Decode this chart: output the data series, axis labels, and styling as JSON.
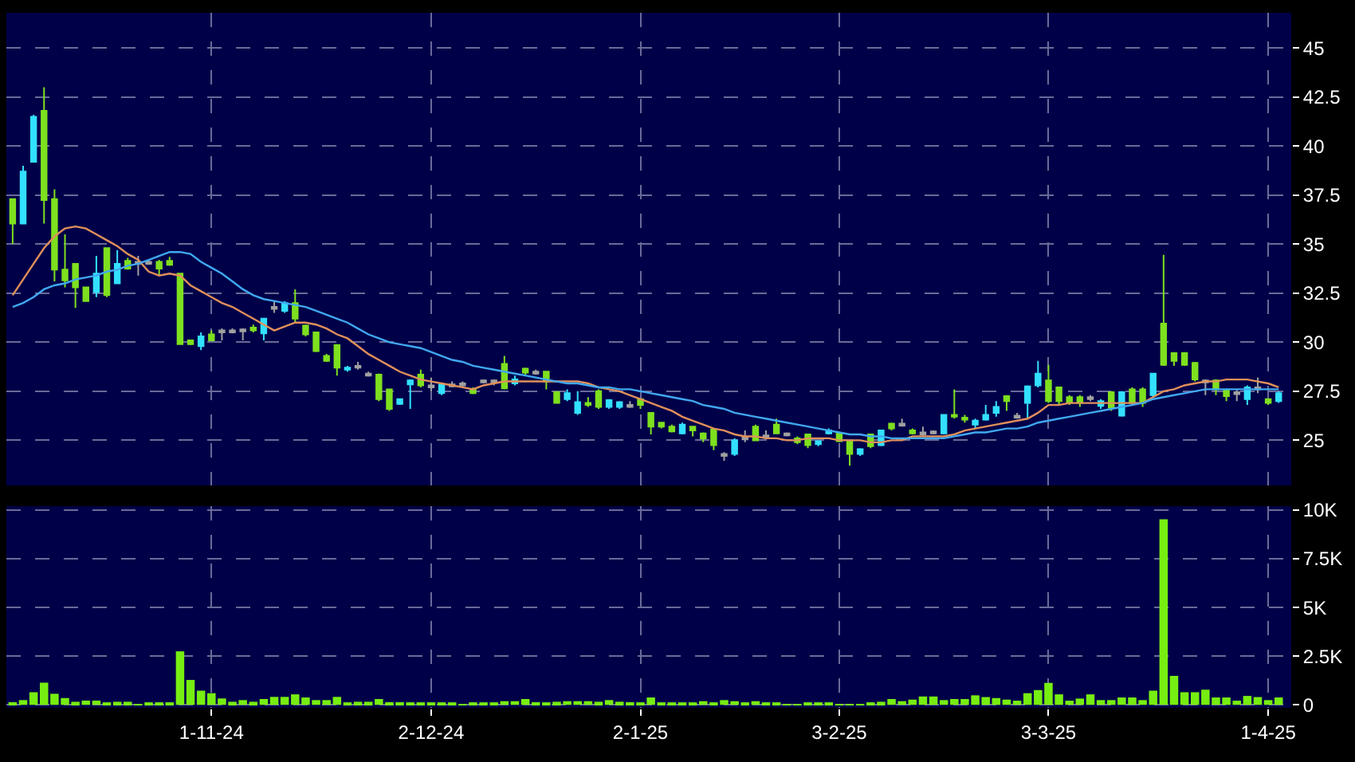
{
  "chart_data": [
    {
      "type": "candlestick",
      "tick_labels": "y",
      "categories": [
        null,
        null,
        null,
        null,
        null,
        null,
        null,
        null,
        null,
        null,
        null,
        null,
        null,
        null,
        null,
        null,
        null,
        null,
        null,
        null,
        null,
        null,
        null,
        null,
        null,
        null,
        null,
        null,
        null,
        null,
        null,
        null,
        null,
        null,
        null,
        null,
        null,
        null,
        null,
        null,
        null,
        null,
        null,
        null,
        null,
        null,
        null,
        null,
        null,
        null,
        null,
        null,
        null,
        null,
        null,
        null,
        null,
        null,
        null,
        null,
        null,
        null,
        null,
        null,
        null,
        null,
        null,
        null,
        null,
        null,
        null,
        null,
        null,
        null,
        null,
        null,
        null,
        null,
        null,
        null,
        null,
        null,
        null,
        null,
        null,
        null,
        null,
        null,
        null,
        null,
        null,
        null,
        null,
        null,
        null,
        null,
        null,
        null,
        null,
        null,
        null,
        null,
        null,
        null,
        null,
        null,
        null,
        null,
        null,
        null,
        null,
        null,
        null,
        null,
        null,
        null,
        null,
        null,
        null,
        null,
        null,
        null
      ],
      "ohlc": [
        [
          37.3,
          37.3,
          35.0,
          36.05
        ],
        [
          36.05,
          39.0,
          36.05,
          38.7
        ],
        [
          39.2,
          41.6,
          39.2,
          41.5
        ],
        [
          41.8,
          43.0,
          36.05,
          37.25
        ],
        [
          37.3,
          37.8,
          33.1,
          33.7
        ],
        [
          33.7,
          35.5,
          32.8,
          33.15
        ],
        [
          34.0,
          34.0,
          31.75,
          32.8
        ],
        [
          32.8,
          32.8,
          32.1,
          32.1
        ],
        [
          32.55,
          34.4,
          32.3,
          33.5
        ],
        [
          34.8,
          34.8,
          32.3,
          32.4
        ],
        [
          33.0,
          34.7,
          33.0,
          34.0
        ],
        [
          34.15,
          34.3,
          33.7,
          33.75
        ],
        [
          34.1,
          34.4,
          33.4,
          34.0
        ],
        [
          34.1,
          34.2,
          33.95,
          34.0
        ],
        [
          34.1,
          34.2,
          33.4,
          33.75
        ],
        [
          34.15,
          34.35,
          33.9,
          33.95
        ],
        [
          33.5,
          33.5,
          29.9,
          29.9
        ],
        [
          30.1,
          30.1,
          29.85,
          29.9
        ],
        [
          29.8,
          30.5,
          29.6,
          30.3
        ],
        [
          30.4,
          30.6,
          30.05,
          30.1
        ],
        [
          30.6,
          30.7,
          30.1,
          30.5
        ],
        [
          30.6,
          30.7,
          30.45,
          30.5
        ],
        [
          30.65,
          30.7,
          30.1,
          30.55
        ],
        [
          30.75,
          30.9,
          30.5,
          30.6
        ],
        [
          30.45,
          31.2,
          30.1,
          31.2
        ],
        [
          31.8,
          32.1,
          31.5,
          31.7
        ],
        [
          31.6,
          32.1,
          31.5,
          32.0
        ],
        [
          32.0,
          32.7,
          31.0,
          31.2
        ],
        [
          30.85,
          30.9,
          30.3,
          30.4
        ],
        [
          30.5,
          30.5,
          29.5,
          29.55
        ],
        [
          29.3,
          29.4,
          29.0,
          29.05
        ],
        [
          29.85,
          29.9,
          28.3,
          28.7
        ],
        [
          28.6,
          28.8,
          28.5,
          28.7
        ],
        [
          28.8,
          29.0,
          28.6,
          28.7
        ],
        [
          28.4,
          28.5,
          28.25,
          28.3
        ],
        [
          28.35,
          28.4,
          27.0,
          27.1
        ],
        [
          27.6,
          27.6,
          26.5,
          26.6
        ],
        [
          26.85,
          27.1,
          26.8,
          27.1
        ],
        [
          27.85,
          28.1,
          26.6,
          28.05
        ],
        [
          28.35,
          28.6,
          27.7,
          27.8
        ],
        [
          27.8,
          28.2,
          27.5,
          27.7
        ],
        [
          27.4,
          27.9,
          27.3,
          27.85
        ],
        [
          27.85,
          28.0,
          27.7,
          27.75
        ],
        [
          27.9,
          28.0,
          27.7,
          27.8
        ],
        [
          27.6,
          27.7,
          27.35,
          27.4
        ],
        [
          28.05,
          28.1,
          27.9,
          27.95
        ],
        [
          28.05,
          28.1,
          27.8,
          27.95
        ],
        [
          28.9,
          29.3,
          27.6,
          27.65
        ],
        [
          27.9,
          28.3,
          27.8,
          28.1
        ],
        [
          28.65,
          28.7,
          28.3,
          28.45
        ],
        [
          28.5,
          28.6,
          28.35,
          28.4
        ],
        [
          28.5,
          28.5,
          27.6,
          28.0
        ],
        [
          27.45,
          27.5,
          26.9,
          26.9
        ],
        [
          27.1,
          27.6,
          27.0,
          27.4
        ],
        [
          26.4,
          27.5,
          26.3,
          26.95
        ],
        [
          26.9,
          27.2,
          26.7,
          26.8
        ],
        [
          27.5,
          27.6,
          26.6,
          26.7
        ],
        [
          26.7,
          27.1,
          26.6,
          27.05
        ],
        [
          26.7,
          27.0,
          26.6,
          26.95
        ],
        [
          26.8,
          27.0,
          26.65,
          26.7
        ],
        [
          27.1,
          27.1,
          26.6,
          26.8
        ],
        [
          26.4,
          26.4,
          25.3,
          25.7
        ],
        [
          25.9,
          25.9,
          25.6,
          25.7
        ],
        [
          25.7,
          25.8,
          25.4,
          25.45
        ],
        [
          25.35,
          25.9,
          25.3,
          25.8
        ],
        [
          25.7,
          25.7,
          25.2,
          25.5
        ],
        [
          25.35,
          25.4,
          24.9,
          25.1
        ],
        [
          25.55,
          25.6,
          24.5,
          24.75
        ],
        [
          24.3,
          24.4,
          23.95,
          24.2
        ],
        [
          24.3,
          25.1,
          24.2,
          25.0
        ],
        [
          25.15,
          25.5,
          24.9,
          25.05
        ],
        [
          25.7,
          25.8,
          25.0,
          25.0
        ],
        [
          25.25,
          25.5,
          25.1,
          25.15
        ],
        [
          25.8,
          26.1,
          25.35,
          25.35
        ],
        [
          25.35,
          25.4,
          25.2,
          25.25
        ],
        [
          25.1,
          25.2,
          24.8,
          24.9
        ],
        [
          25.3,
          25.3,
          24.6,
          24.75
        ],
        [
          24.8,
          25.0,
          24.7,
          24.95
        ],
        [
          25.35,
          25.6,
          25.3,
          25.5
        ],
        [
          25.35,
          25.4,
          24.9,
          24.95
        ],
        [
          24.95,
          24.95,
          23.7,
          24.3
        ],
        [
          24.3,
          24.6,
          24.2,
          24.55
        ],
        [
          25.3,
          25.3,
          24.6,
          24.7
        ],
        [
          24.75,
          25.5,
          24.7,
          25.5
        ],
        [
          25.85,
          25.9,
          25.5,
          25.6
        ],
        [
          25.85,
          26.1,
          25.7,
          25.75
        ],
        [
          25.5,
          25.6,
          25.3,
          25.35
        ],
        [
          25.4,
          25.7,
          25.2,
          25.3
        ],
        [
          25.45,
          25.5,
          25.3,
          25.35
        ],
        [
          25.35,
          26.3,
          25.3,
          26.3
        ],
        [
          26.3,
          27.6,
          26.1,
          26.2
        ],
        [
          26.15,
          26.3,
          25.9,
          26.05
        ],
        [
          25.8,
          26.1,
          25.6,
          26.0
        ],
        [
          26.05,
          26.8,
          26.0,
          26.3
        ],
        [
          26.4,
          27.0,
          26.2,
          26.7
        ],
        [
          27.25,
          27.3,
          26.5,
          27.0
        ],
        [
          26.25,
          26.4,
          26.1,
          26.15
        ],
        [
          26.9,
          27.8,
          26.1,
          27.75
        ],
        [
          27.8,
          29.05,
          27.7,
          28.4
        ],
        [
          28.05,
          28.85,
          26.9,
          27.0
        ],
        [
          27.7,
          27.7,
          26.8,
          27.0
        ],
        [
          27.2,
          27.3,
          26.8,
          26.9
        ],
        [
          27.2,
          27.3,
          26.7,
          26.9
        ],
        [
          27.2,
          27.3,
          27.0,
          27.1
        ],
        [
          26.75,
          27.1,
          26.6,
          27.0
        ],
        [
          27.45,
          27.5,
          26.5,
          26.65
        ],
        [
          26.25,
          27.5,
          26.2,
          27.45
        ],
        [
          27.6,
          27.7,
          26.8,
          26.9
        ],
        [
          27.6,
          27.7,
          26.7,
          26.9
        ],
        [
          27.3,
          28.4,
          27.2,
          28.4
        ],
        [
          30.95,
          34.45,
          28.8,
          28.85
        ],
        [
          29.45,
          29.5,
          28.8,
          29.05
        ],
        [
          29.45,
          29.5,
          28.8,
          28.85
        ],
        [
          28.95,
          29.0,
          28.0,
          28.1
        ],
        [
          28.05,
          28.1,
          27.3,
          27.95
        ],
        [
          28.05,
          28.1,
          27.3,
          27.6
        ],
        [
          27.55,
          27.6,
          27.0,
          27.25
        ],
        [
          27.45,
          27.6,
          27.0,
          27.35
        ],
        [
          27.1,
          27.8,
          26.8,
          27.7
        ],
        [
          27.7,
          28.2,
          27.4,
          27.6
        ],
        [
          27.1,
          27.1,
          26.8,
          26.9
        ],
        [
          27.0,
          27.5,
          26.9,
          27.4
        ]
      ],
      "colors": [
        "#7ee01e",
        "#33e0ff",
        "#33e0ff",
        "#7ee01e",
        "#7ee01e",
        "#7ee01e",
        "#7ee01e",
        "#7ee01e",
        "#33e0ff",
        "#7ee01e",
        "#33e0ff",
        "#7ee01e",
        "#a0a0a0",
        "#a0a0a0",
        "#7ee01e",
        "#7ee01e",
        "#7ee01e",
        "#7ee01e",
        "#33e0ff",
        "#7ee01e",
        "#a0a0a0",
        "#a0a0a0",
        "#a0a0a0",
        "#7ee01e",
        "#33e0ff",
        "#a0a0a0",
        "#33e0ff",
        "#7ee01e",
        "#7ee01e",
        "#7ee01e",
        "#7ee01e",
        "#7ee01e",
        "#33e0ff",
        "#a0a0a0",
        "#a0a0a0",
        "#7ee01e",
        "#7ee01e",
        "#33e0ff",
        "#33e0ff",
        "#7ee01e",
        "#a0a0a0",
        "#33e0ff",
        "#a0a0a0",
        "#a0a0a0",
        "#7ee01e",
        "#a0a0a0",
        "#a0a0a0",
        "#7ee01e",
        "#33e0ff",
        "#7ee01e",
        "#a0a0a0",
        "#7ee01e",
        "#7ee01e",
        "#33e0ff",
        "#33e0ff",
        "#7ee01e",
        "#7ee01e",
        "#33e0ff",
        "#33e0ff",
        "#a0a0a0",
        "#7ee01e",
        "#7ee01e",
        "#7ee01e",
        "#7ee01e",
        "#33e0ff",
        "#7ee01e",
        "#7ee01e",
        "#7ee01e",
        "#a0a0a0",
        "#33e0ff",
        "#a0a0a0",
        "#7ee01e",
        "#a0a0a0",
        "#7ee01e",
        "#a0a0a0",
        "#7ee01e",
        "#7ee01e",
        "#33e0ff",
        "#33e0ff",
        "#7ee01e",
        "#7ee01e",
        "#33e0ff",
        "#7ee01e",
        "#33e0ff",
        "#7ee01e",
        "#a0a0a0",
        "#7ee01e",
        "#a0a0a0",
        "#a0a0a0",
        "#33e0ff",
        "#7ee01e",
        "#7ee01e",
        "#33e0ff",
        "#33e0ff",
        "#33e0ff",
        "#7ee01e",
        "#a0a0a0",
        "#33e0ff",
        "#33e0ff",
        "#7ee01e",
        "#7ee01e",
        "#7ee01e",
        "#7ee01e",
        "#a0a0a0",
        "#33e0ff",
        "#7ee01e",
        "#33e0ff",
        "#7ee01e",
        "#7ee01e",
        "#33e0ff",
        "#7ee01e",
        "#7ee01e",
        "#7ee01e",
        "#7ee01e",
        "#a0a0a0",
        "#7ee01e",
        "#7ee01e",
        "#a0a0a0",
        "#33e0ff",
        "#a0a0a0",
        "#7ee01e",
        "#33e0ff"
      ],
      "series": [
        {
          "type": "line",
          "color": "#e0905a",
          "values": [
            32.4,
            33.2,
            34.0,
            34.8,
            35.4,
            35.8,
            35.9,
            35.8,
            35.5,
            35.2,
            34.9,
            34.5,
            34.2,
            33.6,
            33.4,
            33.5,
            33.4,
            32.9,
            32.6,
            32.3,
            32.0,
            31.8,
            31.5,
            31.2,
            30.9,
            30.6,
            30.8,
            31.0,
            31.0,
            30.9,
            30.7,
            30.4,
            30.2,
            29.8,
            29.4,
            29.1,
            28.8,
            28.5,
            28.3,
            28.1,
            28.0,
            27.9,
            27.8,
            27.7,
            27.6,
            27.8,
            27.9,
            28.0,
            28.0,
            28.0,
            28.0,
            28.0,
            28.0,
            28.0,
            28.0,
            27.9,
            27.7,
            27.6,
            27.5,
            27.3,
            27.1,
            26.9,
            26.7,
            26.5,
            26.2,
            26.0,
            25.8,
            25.6,
            25.5,
            25.3,
            25.2,
            25.2,
            25.1,
            25.1,
            25.0,
            25.0,
            25.1,
            25.1,
            25.1,
            25.0,
            25.0,
            25.0,
            24.9,
            24.9,
            25.0,
            25.0,
            25.2,
            25.2,
            25.2,
            25.2,
            25.3,
            25.5,
            25.6,
            25.7,
            25.8,
            25.9,
            26.0,
            26.1,
            26.4,
            26.8,
            26.8,
            26.9,
            26.9,
            26.9,
            26.9,
            26.9,
            26.9,
            26.9,
            26.9,
            27.2,
            27.5,
            27.6,
            27.8,
            27.9,
            28.0,
            28.0,
            28.1,
            28.1,
            28.1,
            28.0,
            27.9,
            27.7
          ]
        },
        {
          "type": "line",
          "color": "#40a8f0",
          "values": [
            31.8,
            32.0,
            32.3,
            32.7,
            32.9,
            33.0,
            33.2,
            33.3,
            33.4,
            33.6,
            33.7,
            33.9,
            34.0,
            34.2,
            34.4,
            34.6,
            34.6,
            34.5,
            34.1,
            33.8,
            33.5,
            33.1,
            32.7,
            32.4,
            32.2,
            32.1,
            32.0,
            31.9,
            31.8,
            31.6,
            31.4,
            31.2,
            31.0,
            30.7,
            30.4,
            30.2,
            30.0,
            29.9,
            29.8,
            29.7,
            29.5,
            29.3,
            29.1,
            29.0,
            28.8,
            28.7,
            28.6,
            28.5,
            28.4,
            28.3,
            28.2,
            28.1,
            28.0,
            27.9,
            27.9,
            27.8,
            27.7,
            27.7,
            27.6,
            27.6,
            27.5,
            27.4,
            27.3,
            27.2,
            27.1,
            27.0,
            26.8,
            26.7,
            26.6,
            26.4,
            26.3,
            26.2,
            26.1,
            26.0,
            25.9,
            25.8,
            25.7,
            25.6,
            25.5,
            25.4,
            25.3,
            25.3,
            25.2,
            25.2,
            25.1,
            25.1,
            25.1,
            25.1,
            25.1,
            25.1,
            25.2,
            25.3,
            25.4,
            25.4,
            25.5,
            25.6,
            25.6,
            25.7,
            25.9,
            26.0,
            26.1,
            26.2,
            26.3,
            26.4,
            26.5,
            26.6,
            26.7,
            26.8,
            26.9,
            27.1,
            27.2,
            27.3,
            27.4,
            27.5,
            27.6,
            27.6,
            27.6,
            27.6,
            27.6,
            27.6,
            27.6,
            27.6
          ]
        }
      ],
      "ylim": [
        22.7,
        46.8
      ],
      "yticks": [
        25,
        27.5,
        30,
        32.5,
        35,
        37.5,
        40,
        42.5,
        45
      ],
      "grid": true
    },
    {
      "type": "bar",
      "color": "#77ee11",
      "categories": [
        null,
        null,
        null,
        null,
        null,
        null,
        null,
        null,
        null,
        null,
        null,
        null,
        null,
        null,
        null,
        null,
        null,
        null,
        null,
        "1-11-24",
        null,
        null,
        null,
        null,
        null,
        null,
        null,
        null,
        null,
        null,
        null,
        null,
        null,
        null,
        null,
        null,
        null,
        null,
        null,
        null,
        "2-12-24",
        null,
        null,
        null,
        null,
        null,
        null,
        null,
        null,
        null,
        null,
        null,
        null,
        null,
        null,
        null,
        null,
        null,
        null,
        null,
        "2-1-25",
        null,
        null,
        null,
        null,
        null,
        null,
        null,
        null,
        null,
        null,
        null,
        null,
        null,
        null,
        null,
        null,
        null,
        null,
        "3-2-25",
        null,
        null,
        null,
        null,
        null,
        null,
        null,
        null,
        null,
        null,
        null,
        null,
        null,
        null,
        null,
        null,
        null,
        null,
        null,
        "3-3-25",
        null,
        null,
        null,
        null,
        null,
        null,
        null,
        null,
        null,
        null,
        null,
        null,
        null,
        null,
        null,
        null,
        null,
        null,
        null,
        null,
        "1-4-25",
        null
      ],
      "values": [
        136,
        245,
        650,
        1140,
        570,
        350,
        160,
        220,
        220,
        80,
        160,
        160,
        30,
        80,
        80,
        80,
        2750,
        1280,
        730,
        600,
        330,
        160,
        245,
        160,
        300,
        410,
        410,
        540,
        380,
        245,
        245,
        410,
        55,
        160,
        160,
        300,
        136,
        136,
        110,
        55,
        80,
        80,
        80,
        30,
        110,
        110,
        110,
        190,
        190,
        300,
        136,
        55,
        160,
        190,
        190,
        190,
        160,
        245,
        160,
        136,
        55,
        380,
        110,
        80,
        110,
        110,
        190,
        110,
        245,
        190,
        110,
        190,
        80,
        80,
        30,
        30,
        55,
        55,
        55,
        30,
        30,
        30,
        110,
        160,
        300,
        190,
        270,
        430,
        430,
        245,
        300,
        300,
        490,
        400,
        350,
        270,
        215,
        600,
        760,
        1130,
        540,
        215,
        325,
        540,
        245,
        245,
        380,
        380,
        245,
        730,
        9530,
        1490,
        650,
        650,
        780,
        380,
        380,
        215,
        460,
        400,
        245,
        380
      ],
      "ylim": [
        -150,
        10200
      ],
      "yticks": [
        0,
        {
          "value": 2500,
          "label": "2.5K"
        },
        {
          "value": 5000,
          "label": "5K"
        },
        {
          "value": 7500,
          "label": "7.5K"
        },
        {
          "value": 10000,
          "label": "10K"
        }
      ],
      "grid": true
    }
  ]
}
